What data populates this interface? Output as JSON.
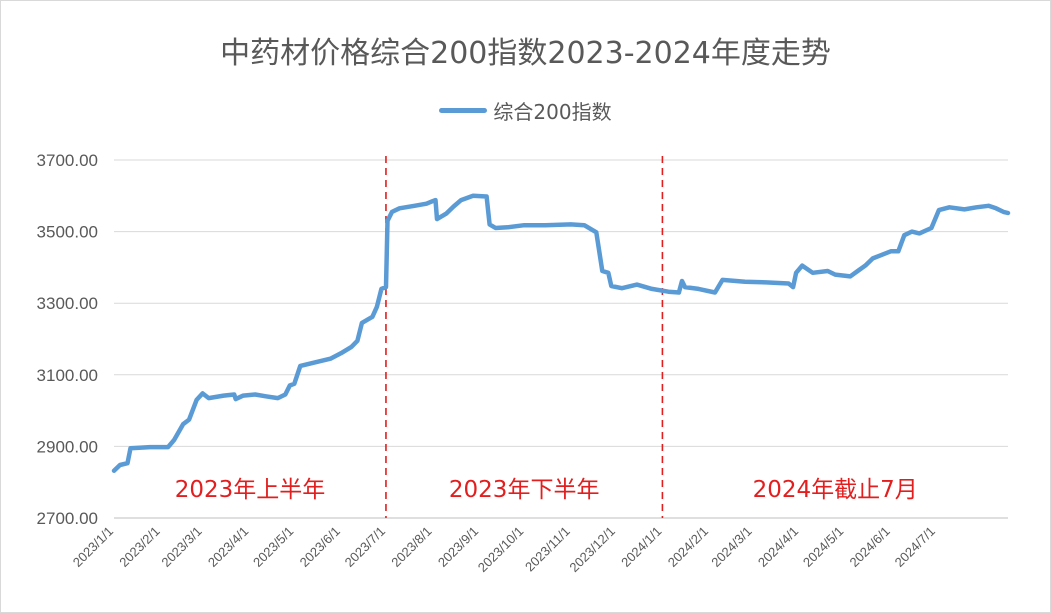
{
  "chart_data": {
    "type": "line",
    "title": "中药材价格综合200指数2023-2024年度走势",
    "series": [
      {
        "name": "综合200指数",
        "color": "#5b9bd5",
        "points": [
          [
            "2023/1/1",
            2832
          ],
          [
            "2023/1/5",
            2848
          ],
          [
            "2023/1/10",
            2853
          ],
          [
            "2023/1/12",
            2895
          ],
          [
            "2023/1/25",
            2898
          ],
          [
            "2023/2/6",
            2898
          ],
          [
            "2023/2/10",
            2918
          ],
          [
            "2023/2/16",
            2962
          ],
          [
            "2023/2/20",
            2975
          ],
          [
            "2023/2/25",
            3030
          ],
          [
            "2023/3/1",
            3048
          ],
          [
            "2023/3/5",
            3035
          ],
          [
            "2023/3/15",
            3042
          ],
          [
            "2023/3/22",
            3045
          ],
          [
            "2023/3/23",
            3032
          ],
          [
            "2023/3/28",
            3042
          ],
          [
            "2023/4/5",
            3045
          ],
          [
            "2023/4/12",
            3040
          ],
          [
            "2023/4/20",
            3035
          ],
          [
            "2023/4/25",
            3045
          ],
          [
            "2023/4/28",
            3070
          ],
          [
            "2023/5/1",
            3075
          ],
          [
            "2023/5/5",
            3125
          ],
          [
            "2023/5/15",
            3135
          ],
          [
            "2023/5/25",
            3145
          ],
          [
            "2023/6/1",
            3160
          ],
          [
            "2023/6/8",
            3178
          ],
          [
            "2023/6/12",
            3195
          ],
          [
            "2023/6/15",
            3245
          ],
          [
            "2023/6/22",
            3262
          ],
          [
            "2023/6/25",
            3290
          ],
          [
            "2023/6/28",
            3340
          ],
          [
            "2023/7/1",
            3345
          ],
          [
            "2023/7/2",
            3530
          ],
          [
            "2023/7/5",
            3555
          ],
          [
            "2023/7/10",
            3565
          ],
          [
            "2023/7/20",
            3572
          ],
          [
            "2023/7/28",
            3578
          ],
          [
            "2023/8/1",
            3585
          ],
          [
            "2023/8/3",
            3588
          ],
          [
            "2023/8/4",
            3535
          ],
          [
            "2023/8/10",
            3550
          ],
          [
            "2023/8/15",
            3570
          ],
          [
            "2023/8/20",
            3588
          ],
          [
            "2023/8/28",
            3600
          ],
          [
            "2023/9/6",
            3598
          ],
          [
            "2023/9/8",
            3520
          ],
          [
            "2023/9/12",
            3510
          ],
          [
            "2023/9/20",
            3512
          ],
          [
            "2023/10/1",
            3518
          ],
          [
            "2023/10/15",
            3518
          ],
          [
            "2023/11/1",
            3520
          ],
          [
            "2023/11/10",
            3518
          ],
          [
            "2023/11/18",
            3498
          ],
          [
            "2023/11/22",
            3390
          ],
          [
            "2023/11/26",
            3385
          ],
          [
            "2023/11/28",
            3348
          ],
          [
            "2023/12/5",
            3342
          ],
          [
            "2023/12/15",
            3352
          ],
          [
            "2023/12/25",
            3340
          ],
          [
            "2024/1/5",
            3332
          ],
          [
            "2024/1/12",
            3330
          ],
          [
            "2024/1/14",
            3362
          ],
          [
            "2024/1/16",
            3345
          ],
          [
            "2024/1/25",
            3340
          ],
          [
            "2024/2/5",
            3330
          ],
          [
            "2024/2/10",
            3365
          ],
          [
            "2024/2/25",
            3360
          ],
          [
            "2024/3/10",
            3358
          ],
          [
            "2024/3/25",
            3355
          ],
          [
            "2024/3/28",
            3345
          ],
          [
            "2024/3/30",
            3385
          ],
          [
            "2024/4/3",
            3405
          ],
          [
            "2024/4/10",
            3385
          ],
          [
            "2024/4/20",
            3390
          ],
          [
            "2024/4/25",
            3380
          ],
          [
            "2024/5/5",
            3375
          ],
          [
            "2024/5/10",
            3390
          ],
          [
            "2024/5/15",
            3405
          ],
          [
            "2024/5/20",
            3425
          ],
          [
            "2024/6/1",
            3445
          ],
          [
            "2024/6/6",
            3445
          ],
          [
            "2024/6/10",
            3490
          ],
          [
            "2024/6/15",
            3500
          ],
          [
            "2024/6/20",
            3495
          ],
          [
            "2024/6/28",
            3510
          ],
          [
            "2024/7/3",
            3560
          ],
          [
            "2024/7/10",
            3568
          ],
          [
            "2024/7/20",
            3562
          ],
          [
            "2024/7/28",
            3568
          ],
          [
            "2024/8/5",
            3572
          ],
          [
            "2024/8/10",
            3565
          ],
          [
            "2024/8/15",
            3555
          ],
          [
            "2024/8/18",
            3552
          ]
        ]
      }
    ],
    "ylim": [
      2700,
      3700
    ],
    "y_ticks": [
      "2700.00",
      "2900.00",
      "3100.00",
      "3300.00",
      "3500.00",
      "3700.00"
    ],
    "x_ticks": [
      "2023/1/1",
      "2023/2/1",
      "2023/3/1",
      "2023/4/1",
      "2023/5/1",
      "2023/6/1",
      "2023/7/1",
      "2023/8/1",
      "2023/9/1",
      "2023/10/1",
      "2023/11/1",
      "2023/12/1",
      "2024/1/1",
      "2024/2/1",
      "2024/3/1",
      "2024/4/1",
      "2024/5/1",
      "2024/6/1",
      "2024/7/1"
    ],
    "xlim": [
      "2023/1/1",
      "2024/8/18"
    ],
    "grid": "horizontal",
    "legend_position": "top",
    "annotations": {
      "divider_dates": [
        "2023/7/1",
        "2024/1/1"
      ],
      "divider_color": "#e21e1e",
      "periods": [
        {
          "label": "2023年上半年",
          "start": "2023/1/1",
          "end": "2023/7/1"
        },
        {
          "label": "2023年下半年",
          "start": "2023/7/1",
          "end": "2024/1/1"
        },
        {
          "label": "2024年截止7月",
          "start": "2024/1/1",
          "end": "2024/8/18"
        }
      ]
    }
  }
}
